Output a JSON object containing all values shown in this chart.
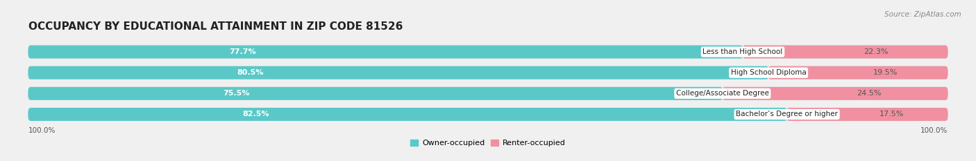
{
  "title": "OCCUPANCY BY EDUCATIONAL ATTAINMENT IN ZIP CODE 81526",
  "source": "Source: ZipAtlas.com",
  "categories": [
    "Less than High School",
    "High School Diploma",
    "College/Associate Degree",
    "Bachelor’s Degree or higher"
  ],
  "owner_pct": [
    77.7,
    80.5,
    75.5,
    82.5
  ],
  "renter_pct": [
    22.3,
    19.5,
    24.5,
    17.5
  ],
  "owner_color": "#5bc8c8",
  "renter_color": "#f090a0",
  "bg_color": "#f0f0f0",
  "bar_bg_color": "#e0e0e0",
  "bar_height": 0.62,
  "title_fontsize": 11,
  "label_fontsize": 8,
  "tick_fontsize": 7.5,
  "source_fontsize": 7.5,
  "left_label": "100.0%",
  "right_label": "100.0%",
  "legend_owner": "Owner-occupied",
  "legend_renter": "Renter-occupied"
}
